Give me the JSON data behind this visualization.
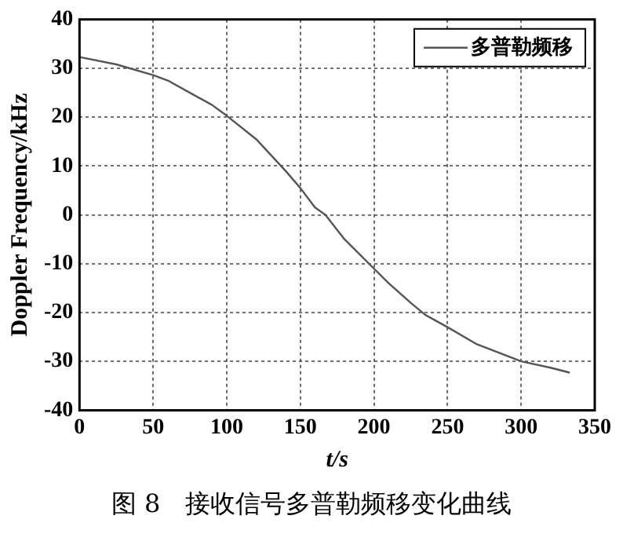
{
  "chart_data": {
    "type": "line",
    "xlabel": "t/s",
    "ylabel": "Doppler Frequency/kHz",
    "annotations": [
      "图 8　接收信号多普勒频移变化曲线"
    ],
    "x": [
      0,
      25,
      50,
      60,
      75,
      90,
      100,
      120,
      140,
      150,
      160,
      167,
      180,
      200,
      210,
      225,
      235,
      250,
      270,
      300,
      320,
      333
    ],
    "series": [
      {
        "name": "多普勒频移",
        "color": "#555555",
        "values": [
          32.3,
          30.8,
          28.6,
          27.5,
          25,
          22.5,
          20.3,
          15.5,
          9,
          5.5,
          1.5,
          0,
          -5,
          -11,
          -14,
          -18,
          -20.5,
          -23,
          -26.5,
          -30,
          -31.3,
          -32.3
        ]
      }
    ],
    "xlim": [
      0,
      350
    ],
    "xticks": [
      0,
      50,
      100,
      150,
      200,
      250,
      300,
      350
    ],
    "ylim": [
      -40,
      40
    ],
    "yticks": [
      -40,
      -30,
      -20,
      -10,
      0,
      10,
      20,
      30,
      40
    ],
    "grid": true,
    "legend": "top right",
    "marker": "none",
    "line_style": "solid"
  }
}
